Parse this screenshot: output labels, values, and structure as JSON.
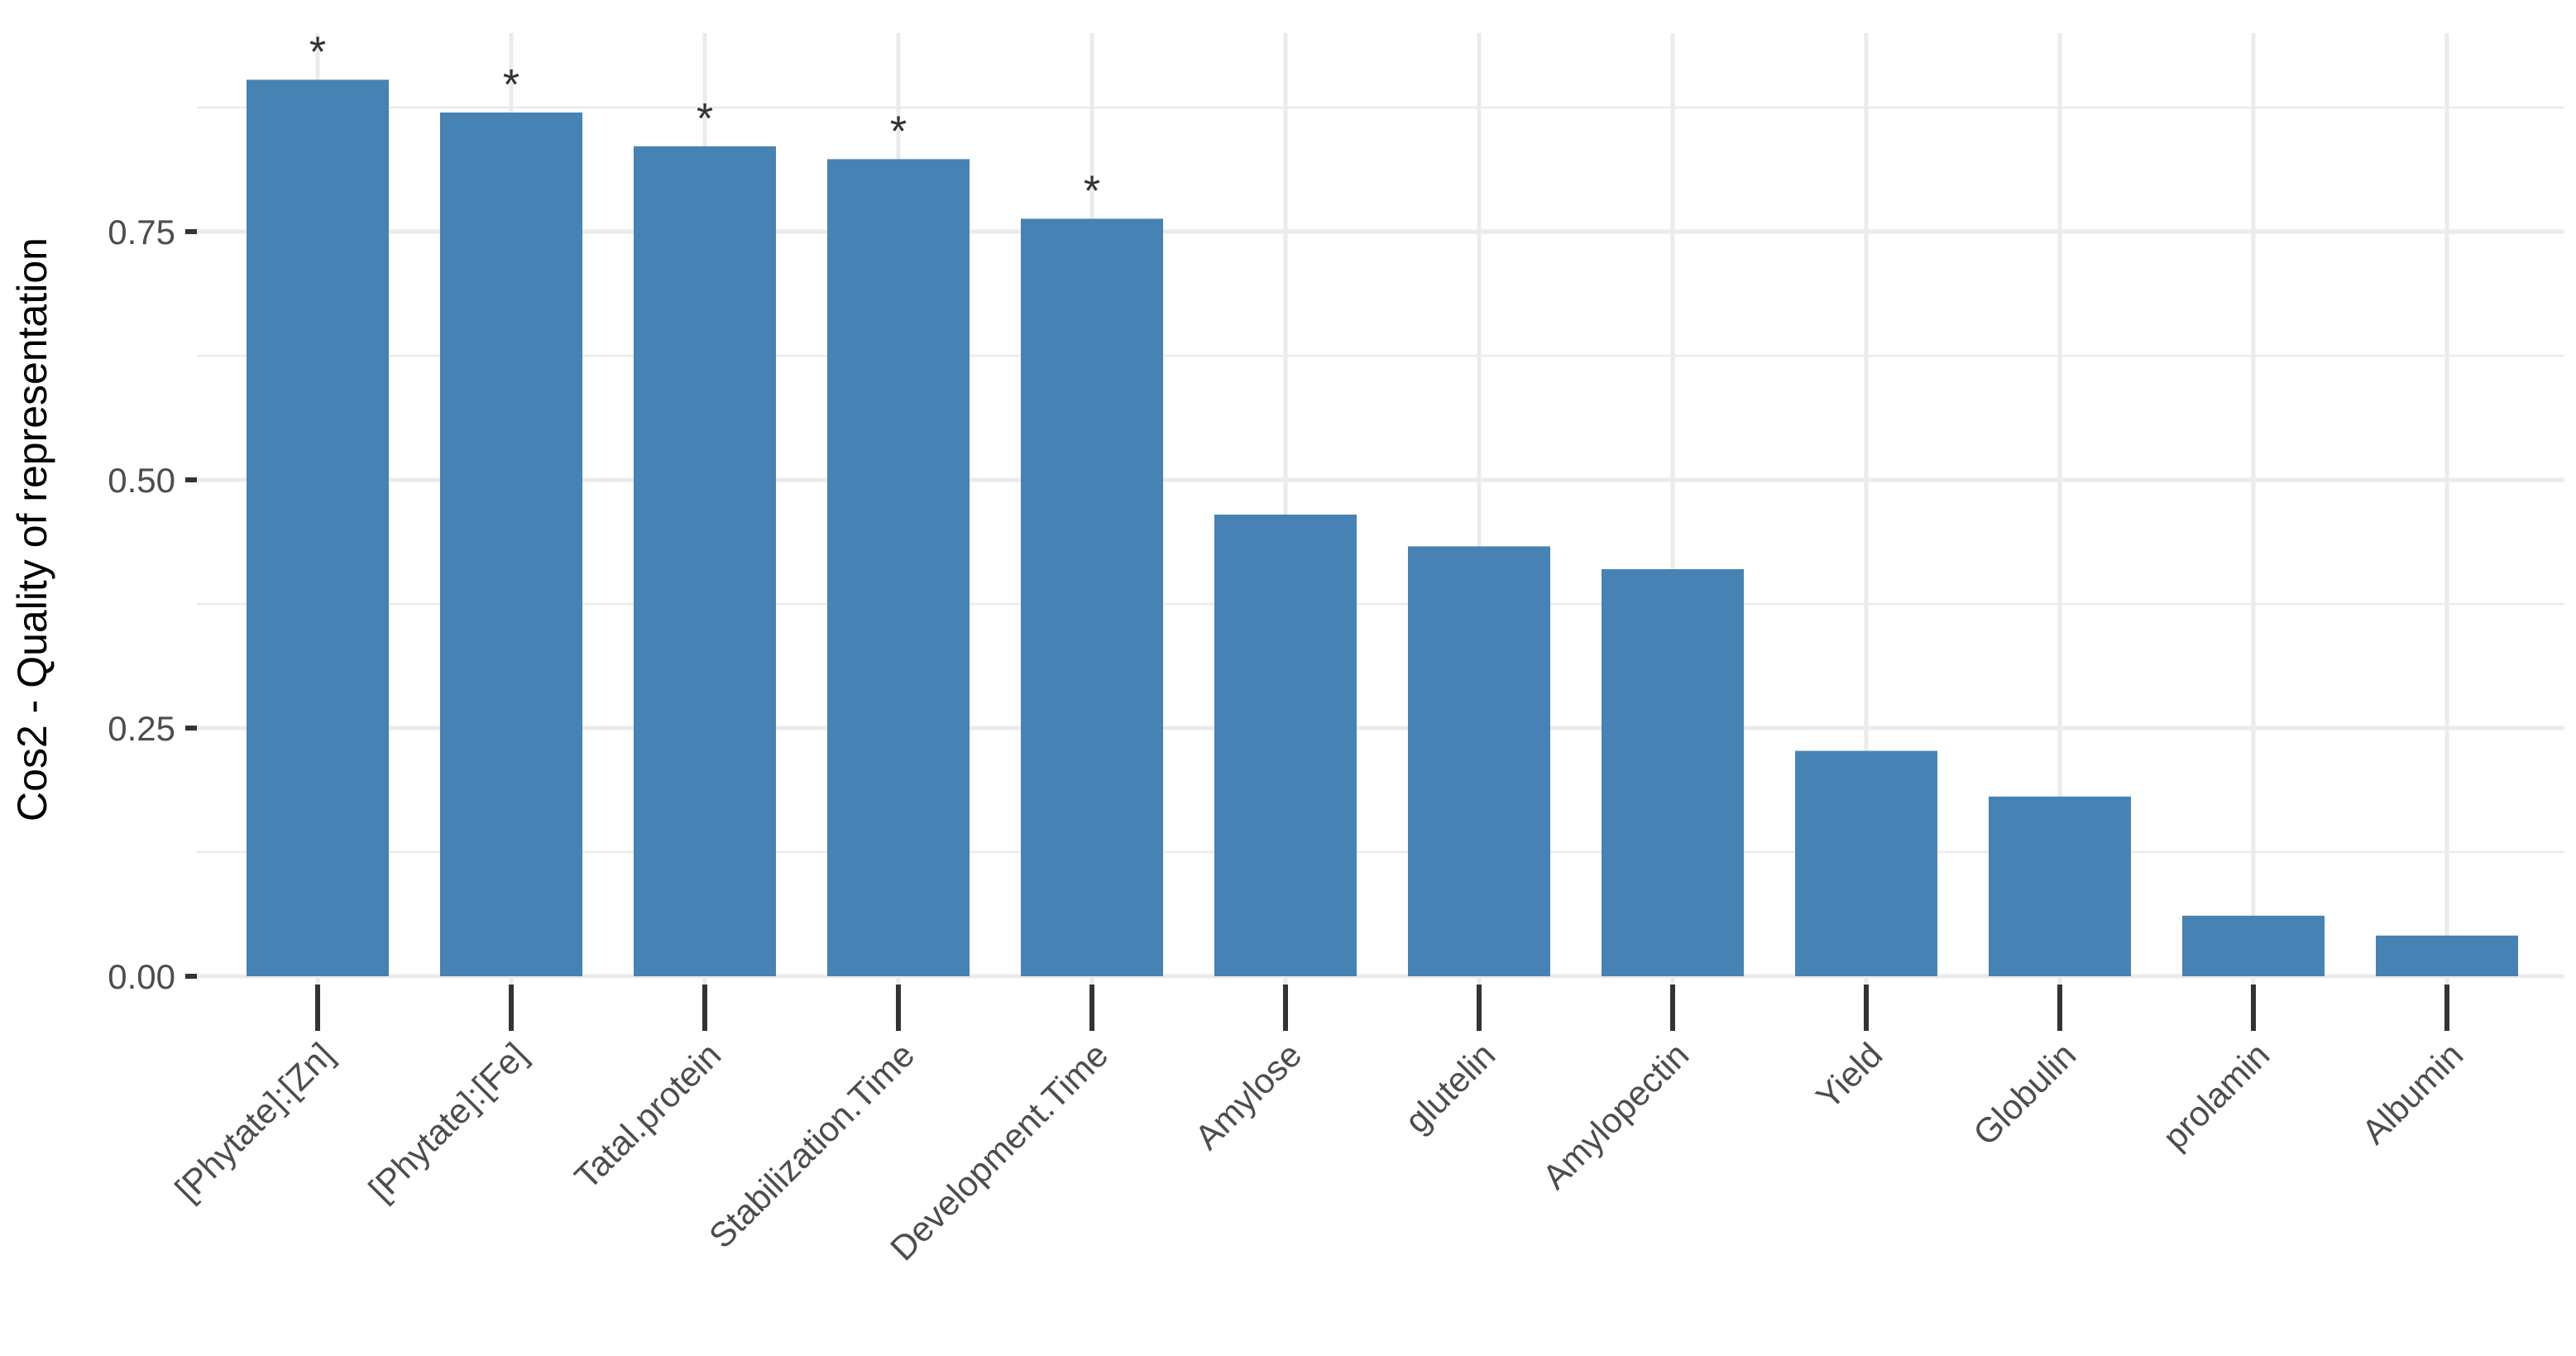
{
  "chart_data": {
    "type": "bar",
    "categories": [
      "[Phytate]:[Zn]",
      "[Phytate]:[Fe]",
      "Tatal.protein",
      "Stabilization.Time",
      "Development.Time",
      "Amylose",
      "glutelin",
      "Amylopectin",
      "Yield",
      "Globulin",
      "prolamin",
      "Albumin"
    ],
    "values": [
      0.903,
      0.87,
      0.836,
      0.823,
      0.763,
      0.465,
      0.433,
      0.41,
      0.227,
      0.181,
      0.061,
      0.041
    ],
    "significant": [
      true,
      true,
      true,
      true,
      true,
      false,
      false,
      false,
      false,
      false,
      false,
      false
    ],
    "significance_marker": "*",
    "title": "",
    "xlabel": "",
    "ylabel": "Cos2 - Quality of representation",
    "ylim": [
      0,
      0.95
    ],
    "yticks": [
      0.0,
      0.25,
      0.5,
      0.75
    ],
    "ytick_labels": [
      "0.00",
      "0.25",
      "0.50",
      "0.75"
    ],
    "grid": true,
    "colors": {
      "bar": "#4682b4",
      "grid": "#ebebeb",
      "background": "#ffffff",
      "tick_text": "#4d4d4d",
      "axis_title": "#000000",
      "tick_mark": "#333333"
    }
  }
}
